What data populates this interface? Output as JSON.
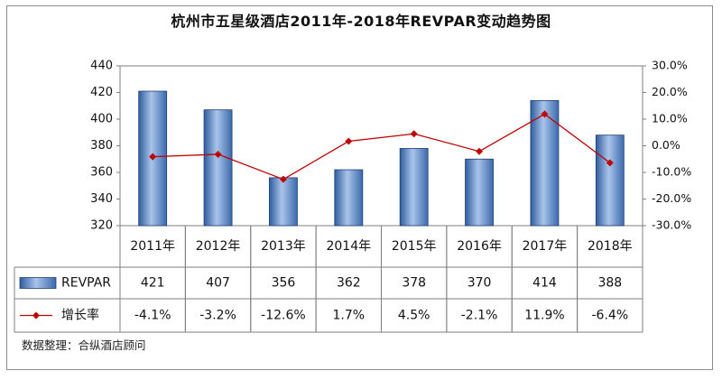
{
  "chart_data": {
    "type": "bar",
    "title": "杭州市五星级酒店2011年-2018年REVPAR变动趋势图",
    "categories": [
      "2011年",
      "2012年",
      "2013年",
      "2014年",
      "2015年",
      "2016年",
      "2017年",
      "2018年"
    ],
    "series": [
      {
        "name": "REVPAR",
        "kind": "bar",
        "axis": "left",
        "values": [
          421,
          407,
          356,
          362,
          378,
          370,
          414,
          388
        ],
        "labels": [
          "421",
          "407",
          "356",
          "362",
          "378",
          "370",
          "414",
          "388"
        ],
        "color": "#4a78b8"
      },
      {
        "name": "增长率",
        "kind": "line",
        "axis": "right",
        "values": [
          -4.1,
          -3.2,
          -12.6,
          1.7,
          4.5,
          -2.1,
          11.9,
          -6.4
        ],
        "labels": [
          "-4.1%",
          "-3.2%",
          "-12.6%",
          "1.7%",
          "4.5%",
          "-2.1%",
          "11.9%",
          "-6.4%"
        ],
        "color": "#c00000"
      }
    ],
    "y_left": {
      "min": 320,
      "max": 440,
      "ticks": [
        440,
        420,
        400,
        380,
        360,
        340,
        320
      ],
      "tick_labels": [
        "440",
        "420",
        "400",
        "380",
        "360",
        "340",
        "320"
      ]
    },
    "y_right": {
      "min": -30,
      "max": 30,
      "ticks": [
        30,
        20,
        10,
        0,
        -10,
        -20,
        -30
      ],
      "tick_labels": [
        "30.0%",
        "20.0%",
        "10.0%",
        "0.0%",
        "-10.0%",
        "-20.0%",
        "-30.0%"
      ]
    },
    "grid": false,
    "legend": "data-table"
  },
  "source_note": "数据整理：合纵酒店顾问"
}
